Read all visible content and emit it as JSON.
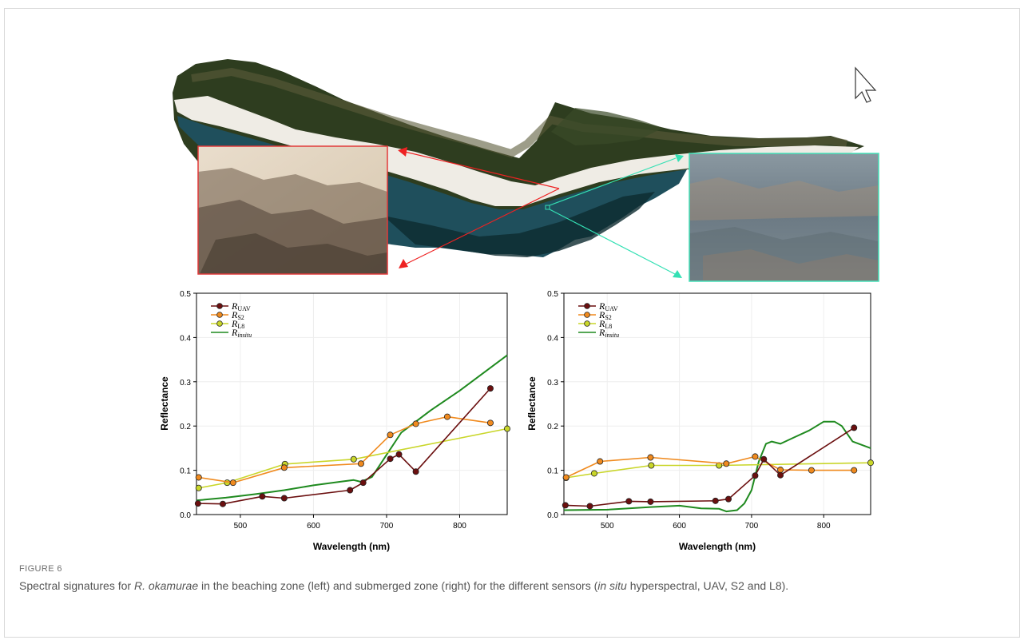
{
  "figure": {
    "label": "FIGURE 6",
    "caption": {
      "part1": "Spectral signatures for ",
      "species": "R. okamurae",
      "part2": " in the beaching zone (left) and submerged zone (right) for the different sensors (",
      "insitu": "in situ",
      "part3": " hyperspectral, UAV, S2 and L8)."
    }
  },
  "colors": {
    "UAV": "#6b0f0f",
    "S2": "#f08a1e",
    "L8": "#c9d62a",
    "insitu": "#1f8a1f",
    "beaching_arrow": "#ee2222",
    "submerged_arrow": "#34e0b4"
  },
  "legend": [
    {
      "key": "UAV",
      "main": "R",
      "sub": "UAV"
    },
    {
      "key": "S2",
      "main": "R",
      "sub": "S2"
    },
    {
      "key": "L8",
      "main": "R",
      "sub": "L8"
    },
    {
      "key": "insitu",
      "main": "R",
      "sub": "insitu"
    }
  ],
  "chart_data": [
    {
      "type": "line",
      "xlabel": "Wavelength (nm)",
      "ylabel": "Reflectance",
      "xlim": [
        440,
        865
      ],
      "ylim": [
        0,
        0.5
      ],
      "xticks": [
        500,
        600,
        700,
        800
      ],
      "yticks": [
        0.0,
        0.1,
        0.2,
        0.3,
        0.4,
        0.5
      ],
      "series": [
        {
          "name": "UAV",
          "x": [
            442,
            476,
            530,
            560,
            650,
            668,
            705,
            717,
            740,
            842
          ],
          "y": [
            0.025,
            0.024,
            0.041,
            0.037,
            0.055,
            0.072,
            0.126,
            0.136,
            0.097,
            0.285
          ]
        },
        {
          "name": "S2",
          "x": [
            443,
            490,
            560,
            665,
            705,
            740,
            783,
            842
          ],
          "y": [
            0.084,
            0.072,
            0.106,
            0.115,
            0.18,
            0.205,
            0.221,
            0.207
          ]
        },
        {
          "name": "L8",
          "x": [
            443,
            482,
            561,
            655,
            865
          ],
          "y": [
            0.06,
            0.072,
            0.114,
            0.125,
            0.194
          ]
        },
        {
          "name": "insitu",
          "x": [
            440,
            480,
            520,
            560,
            600,
            640,
            655,
            665,
            680,
            700,
            720,
            760,
            800,
            865
          ],
          "y": [
            0.032,
            0.038,
            0.046,
            0.055,
            0.066,
            0.075,
            0.078,
            0.074,
            0.085,
            0.135,
            0.185,
            0.235,
            0.28,
            0.36
          ]
        }
      ]
    },
    {
      "type": "line",
      "xlabel": "Wavelength (nm)",
      "ylabel": "Reflectance",
      "xlim": [
        440,
        865
      ],
      "ylim": [
        0,
        0.5
      ],
      "xticks": [
        500,
        600,
        700,
        800
      ],
      "yticks": [
        0.0,
        0.1,
        0.2,
        0.3,
        0.4,
        0.5
      ],
      "series": [
        {
          "name": "UAV",
          "x": [
            442,
            476,
            530,
            560,
            650,
            668,
            705,
            717,
            740,
            842
          ],
          "y": [
            0.021,
            0.019,
            0.03,
            0.029,
            0.031,
            0.035,
            0.088,
            0.125,
            0.089,
            0.196
          ]
        },
        {
          "name": "S2",
          "x": [
            443,
            490,
            560,
            665,
            705,
            740,
            783,
            842
          ],
          "y": [
            0.084,
            0.12,
            0.129,
            0.115,
            0.131,
            0.101,
            0.1,
            0.1
          ]
        },
        {
          "name": "L8",
          "x": [
            443,
            482,
            561,
            655,
            865
          ],
          "y": [
            0.083,
            0.093,
            0.111,
            0.111,
            0.117
          ]
        },
        {
          "name": "insitu",
          "x": [
            440,
            500,
            560,
            600,
            630,
            655,
            665,
            680,
            690,
            700,
            710,
            720,
            728,
            740,
            760,
            780,
            800,
            815,
            825,
            840,
            865
          ],
          "y": [
            0.01,
            0.011,
            0.017,
            0.02,
            0.014,
            0.013,
            0.007,
            0.01,
            0.025,
            0.055,
            0.12,
            0.16,
            0.165,
            0.16,
            0.175,
            0.19,
            0.21,
            0.21,
            0.2,
            0.165,
            0.15
          ]
        }
      ]
    }
  ]
}
